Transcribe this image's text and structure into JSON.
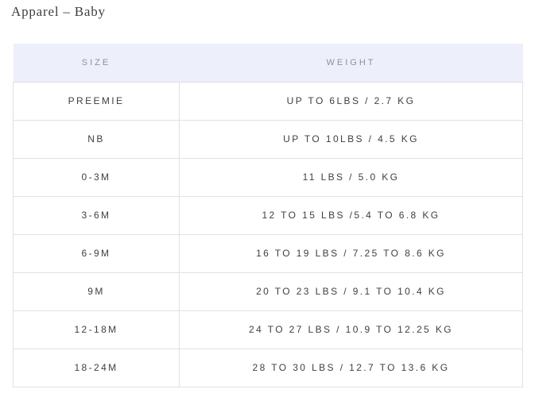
{
  "page": {
    "title": "Apparel – Baby"
  },
  "colors": {
    "header_bg": "#edf0fa",
    "header_text": "#8b92a5",
    "body_text": "#3e4046",
    "border": "#e1e1e4",
    "title_text": "#3d3e42",
    "page_bg": "#ffffff"
  },
  "table": {
    "columns": [
      {
        "label": "SIZE"
      },
      {
        "label": "WEIGHT"
      }
    ],
    "rows": [
      {
        "size": "PREEMIE",
        "weight": "UP TO 6LBS / 2.7 KG"
      },
      {
        "size": "NB",
        "weight": "UP TO 10LBS / 4.5 KG"
      },
      {
        "size": "0-3M",
        "weight": "11 LBS / 5.0 KG"
      },
      {
        "size": "3-6M",
        "weight": "12 TO 15 LBS /5.4 TO 6.8 KG"
      },
      {
        "size": "6-9M",
        "weight": "16 TO 19 LBS / 7.25 TO 8.6 KG"
      },
      {
        "size": "9M",
        "weight": "20 TO 23 LBS / 9.1 TO 10.4 KG"
      },
      {
        "size": "12-18M",
        "weight": "24 TO 27 LBS / 10.9 TO 12.25 KG"
      },
      {
        "size": "18-24M",
        "weight": "28 TO 30 LBS / 12.7 TO 13.6 KG"
      }
    ]
  }
}
